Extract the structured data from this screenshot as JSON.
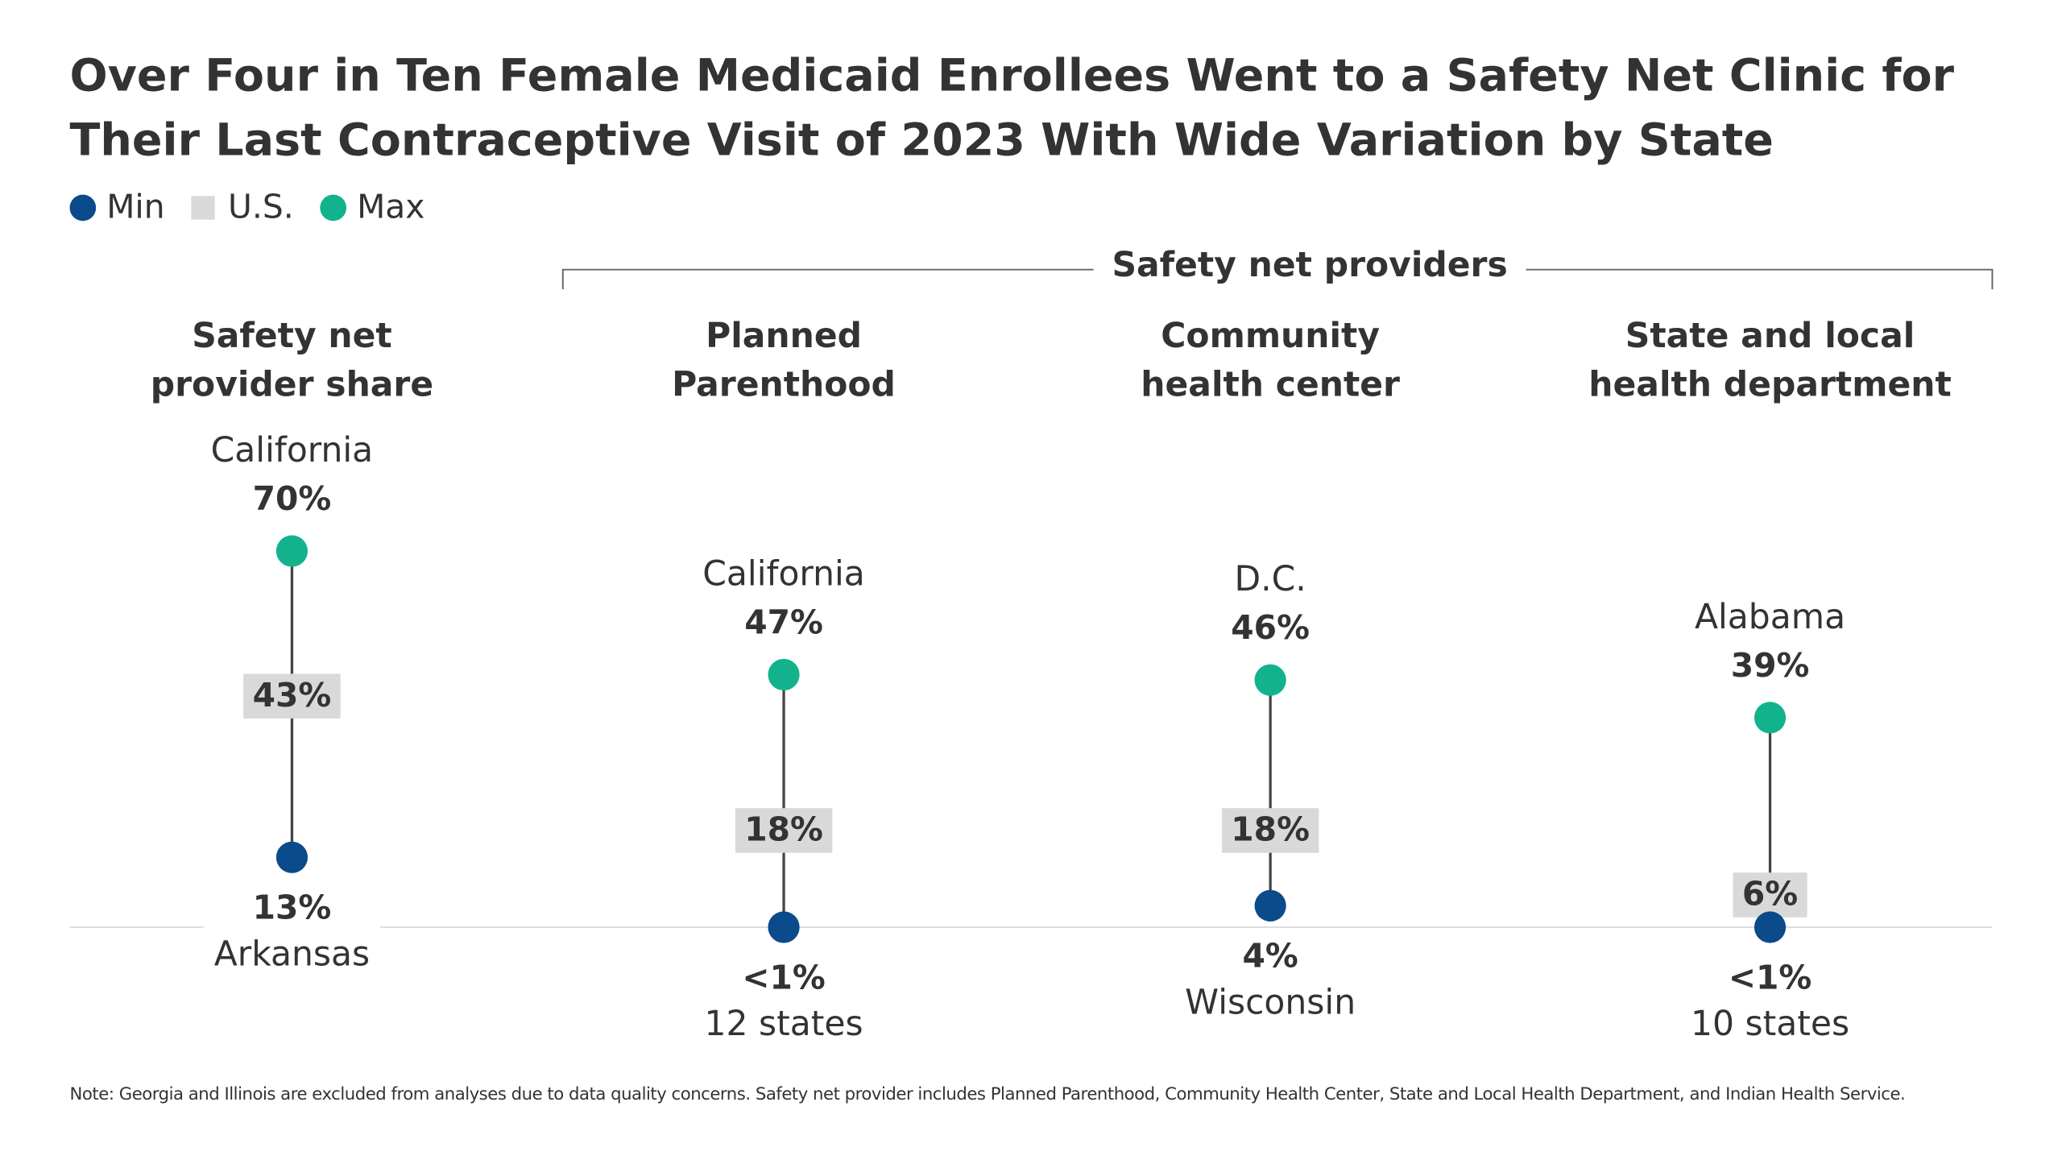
{
  "title": "Over Four in Ten Female Medicaid Enrollees Went to a Safety Net Clinic for Their Last Contraceptive Visit of 2023 With Wide Variation by State",
  "note": "Note: Georgia and Illinois are excluded from analyses due to data quality concerns. Safety net provider includes Planned Parenthood, Community Health Center, State and Local Health Department, and Indian Health Service.",
  "chart_data": {
    "type": "dumbbell",
    "group_label": "Safety net providers",
    "categories": [
      "Safety net\nprovider share",
      "Planned\nParenthood",
      "Community\nhealth center",
      "State and local\nhealth department"
    ],
    "series": [
      {
        "name": "Min",
        "color": "#0b4a8b",
        "marker": "dot",
        "values": [
          13,
          0,
          4,
          0
        ],
        "value_labels": [
          "13%",
          "<1%",
          "4%",
          "<1%"
        ],
        "states": [
          "Arkansas",
          "12 states",
          "Wisconsin",
          "10 states"
        ]
      },
      {
        "name": "U.S.",
        "color": "#d9d9d9",
        "marker": "box",
        "values": [
          43,
          18,
          18,
          6
        ],
        "value_labels": [
          "43%",
          "18%",
          "18%",
          "6%"
        ]
      },
      {
        "name": "Max",
        "color": "#12b38c",
        "marker": "dot",
        "values": [
          70,
          47,
          46,
          39
        ],
        "value_labels": [
          "70%",
          "47%",
          "46%",
          "39%"
        ],
        "states": [
          "California",
          "California",
          "D.C.",
          "Alabama"
        ]
      }
    ]
  }
}
